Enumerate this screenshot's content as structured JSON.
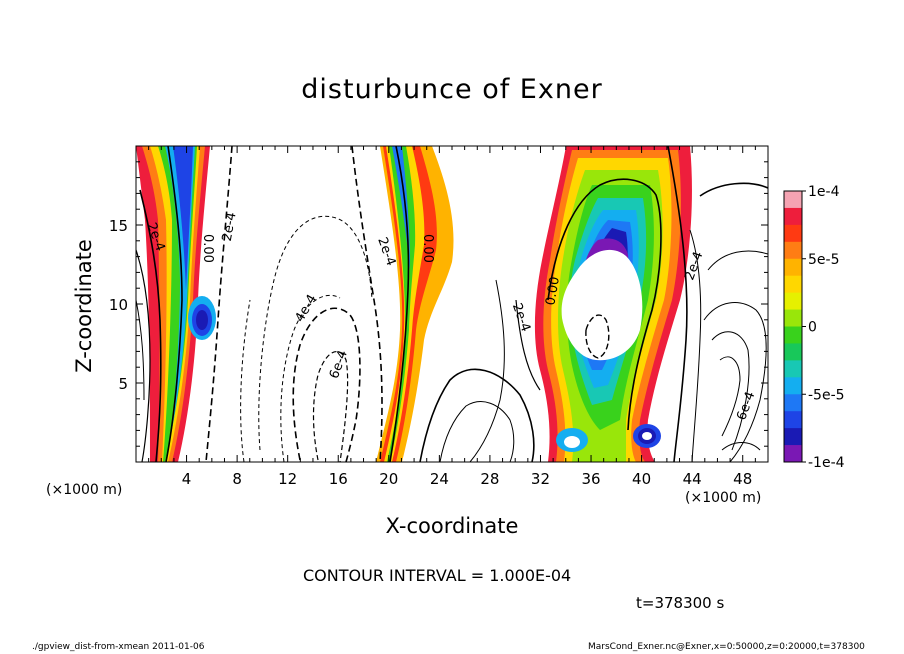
{
  "chart_data": {
    "type": "heatmap",
    "title": "disturbunce of Exner",
    "xlabel": "X-coordinate",
    "ylabel": "Z-coordinate",
    "x_unit_label": "(×1000 m)",
    "z_unit_label": "(×1000 m)",
    "xlim": [
      0,
      50
    ],
    "ylim": [
      0,
      20
    ],
    "x_ticks": [
      "4",
      "8",
      "12",
      "16",
      "20",
      "24",
      "28",
      "32",
      "36",
      "40",
      "44",
      "48"
    ],
    "y_ticks": [
      "5",
      "10",
      "15"
    ],
    "x_tick_values": [
      4,
      8,
      12,
      16,
      20,
      24,
      28,
      32,
      36,
      40,
      44,
      48
    ],
    "y_tick_values": [
      5,
      10,
      15
    ],
    "colorbar": {
      "range": [
        -0.0001,
        0.0001
      ],
      "tick_labels": [
        "1e-4",
        "5e-5",
        "0",
        "-5e-5",
        "-1e-4"
      ],
      "tick_values": [
        0.0001,
        5e-05,
        0,
        -5e-05,
        -0.0001
      ],
      "colors": [
        "#f5a3b2",
        "#ee1e3c",
        "#ff3a12",
        "#ff7d14",
        "#ffb300",
        "#ffd700",
        "#e6f000",
        "#99e60a",
        "#39d21c",
        "#18c85a",
        "#18c8b4",
        "#14aef0",
        "#1e78f5",
        "#1e44e6",
        "#1a1ab4",
        "#7a18b4"
      ]
    },
    "contour_interval_text": "CONTOUR INTERVAL = 1.000E-04",
    "contour_labels": [
      "2e-4",
      "0.00",
      "2e-4",
      "4e-4",
      "6e-4",
      "2e-4",
      "0.00",
      "2e-4",
      "0.00",
      "2e-4",
      "6e-4"
    ],
    "features": [
      {
        "kind": "positive-column",
        "x_range": [
          2,
          5
        ],
        "z_range": [
          0,
          20
        ]
      },
      {
        "kind": "negative-core",
        "x": 5.2,
        "z": 9
      },
      {
        "kind": "positive-column",
        "x_range": [
          19,
          24
        ],
        "z_range": [
          0,
          20
        ]
      },
      {
        "kind": "positive-arch",
        "x_range": [
          31,
          43
        ],
        "z_range": [
          0,
          20
        ]
      },
      {
        "kind": "negative-core",
        "x": 40.2,
        "z": 1.7
      },
      {
        "kind": "white-low-region",
        "x": 37.5,
        "z": 11
      }
    ]
  },
  "annotations": {
    "time": "t=378300 s",
    "footer_left": "./gpview_dist-from-xmean   2011-01-06",
    "footer_right": "MarsCond_Exner.nc@Exner,x=0:50000,z=0:20000,t=378300"
  }
}
